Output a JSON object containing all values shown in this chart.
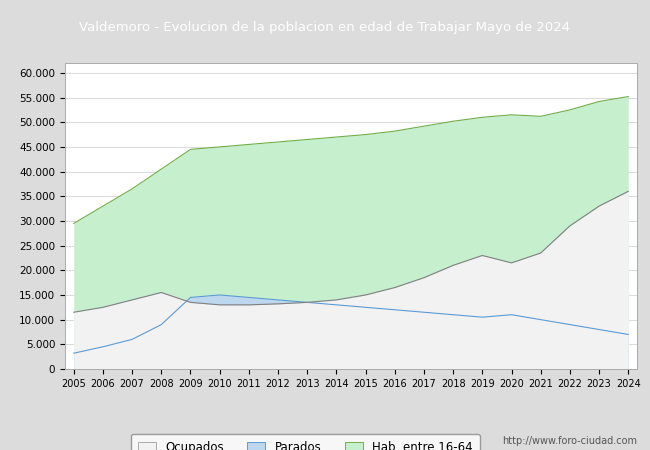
{
  "title": "Valdemoro - Evolucion de la poblacion en edad de Trabajar Mayo de 2024",
  "title_color": "#ffffff",
  "title_bg_color": "#4472c4",
  "ylim": [
    0,
    62000
  ],
  "yticks": [
    0,
    5000,
    10000,
    15000,
    20000,
    25000,
    30000,
    35000,
    40000,
    45000,
    50000,
    55000,
    60000
  ],
  "ytick_labels": [
    "0",
    "5.000",
    "10.000",
    "15.000",
    "20.000",
    "25.000",
    "30.000",
    "35.000",
    "40.000",
    "45.000",
    "50.000",
    "55.000",
    "60.000"
  ],
  "years": [
    2005,
    2006,
    2007,
    2008,
    2009,
    2010,
    2011,
    2012,
    2013,
    2014,
    2015,
    2016,
    2017,
    2018,
    2019,
    2020,
    2021,
    2022,
    2023,
    2024
  ],
  "hab_16_64": [
    29500,
    33000,
    36500,
    40500,
    44500,
    45000,
    45500,
    46000,
    46500,
    47000,
    47500,
    48200,
    49200,
    50200,
    51000,
    51500,
    51200,
    52500,
    54200,
    55200
  ],
  "parados": [
    3200,
    4500,
    6000,
    9000,
    14500,
    15000,
    14500,
    14000,
    13500,
    13000,
    12500,
    12000,
    11500,
    11000,
    10500,
    11000,
    10000,
    9000,
    8000,
    7000
  ],
  "ocupados": [
    11500,
    12500,
    14000,
    15500,
    13500,
    13000,
    13000,
    13200,
    13500,
    14000,
    15000,
    16500,
    18500,
    21000,
    23000,
    21500,
    23500,
    29000,
    33000,
    36000
  ],
  "color_hab": "#c6efce",
  "color_parados": "#bdd7ee",
  "color_ocupados": "#f2f2f2",
  "color_line_hab": "#70ad47",
  "color_line_parados": "#5b9bd5",
  "color_line_ocupados": "#808080",
  "legend_labels": [
    "Ocupados",
    "Parados",
    "Hab. entre 16-64"
  ],
  "url_text": "http://www.foro-ciudad.com",
  "background_color": "#dcdcdc",
  "plot_bg_color": "#ffffff"
}
